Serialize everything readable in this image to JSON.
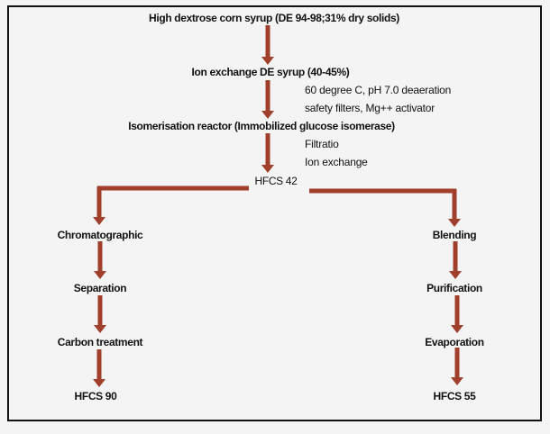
{
  "colors": {
    "arrow": "#a0402c",
    "text": "#111111",
    "border": "#111111",
    "background": "#f4f4f4"
  },
  "main_flow": {
    "step1": "High dextrose corn syrup (DE 94-98;31% dry solids)",
    "step2": "Ion exchange DE syrup (40-45%)",
    "step2_notes": [
      "60 degree C, pH 7.0 deaeration",
      "safety filters, Mg++ activator"
    ],
    "step3": "Isomerisation reactor (Immobilized glucose isomerase)",
    "step3_notes": [
      "Filtratio",
      "Ion exchange"
    ],
    "step4": "HFCS 42"
  },
  "left_branch": [
    "Chromatographic",
    "Separation",
    "Carbon treatment",
    "HFCS 90"
  ],
  "right_branch": [
    "Blending",
    "Purification",
    "Evaporation",
    "HFCS 55"
  ]
}
